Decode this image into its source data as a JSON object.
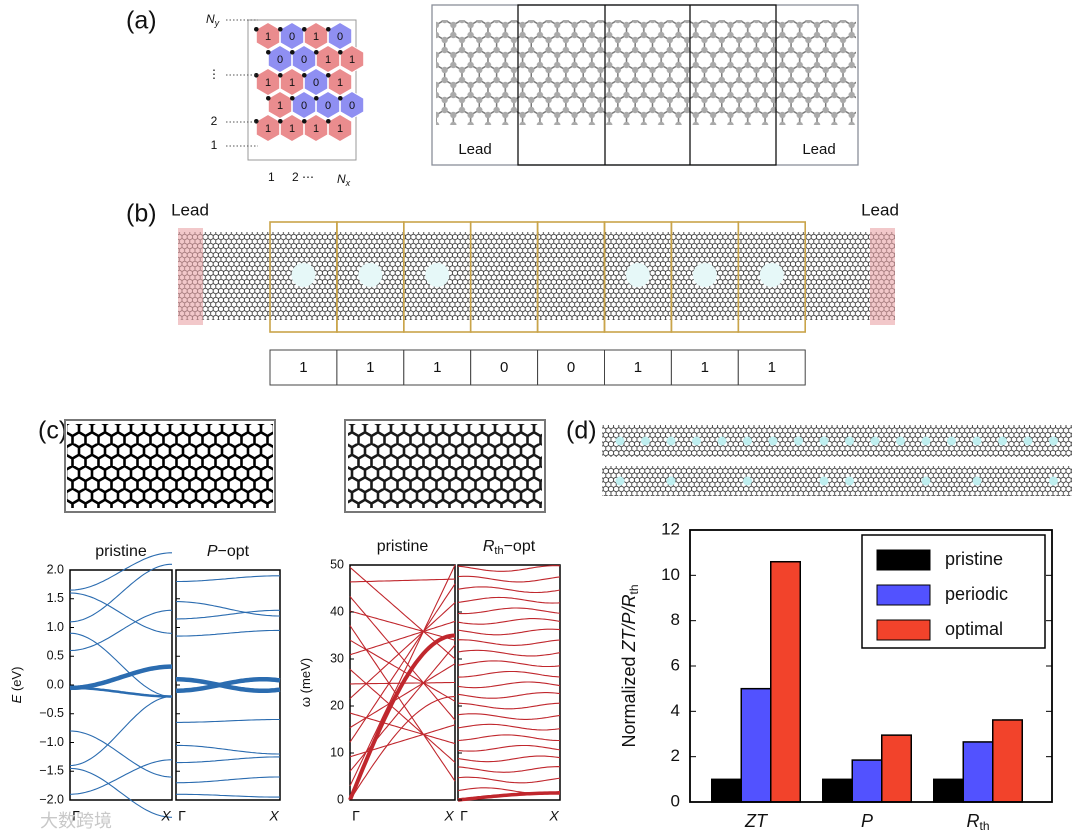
{
  "panel_a": {
    "label": "(a)",
    "ny_label": "N",
    "ny_sub": "y",
    "row_labels": [
      "⋮",
      "2",
      "1"
    ],
    "col_labels": [
      "1",
      "2 ⋯"
    ],
    "nx_label": "N",
    "nx_sub": "x",
    "cells": [
      [
        1,
        0,
        1,
        0
      ],
      [
        0,
        0,
        1,
        1
      ],
      [
        1,
        1,
        0,
        1
      ],
      [
        1,
        0,
        0,
        0
      ],
      [
        1,
        1,
        1,
        1
      ]
    ],
    "leads": [
      "Lead",
      "Lead"
    ]
  },
  "panel_b": {
    "label": "(b)",
    "leads": [
      "Lead",
      "Lead"
    ],
    "sequence": [
      1,
      1,
      1,
      0,
      0,
      1,
      1,
      1
    ]
  },
  "panel_c": {
    "label": "(c)",
    "electron": {
      "left_title": "pristine",
      "right_title_var": "P",
      "right_title_rest": "−opt",
      "ylabel_var": "E",
      "ylabel_rest": " (eV)",
      "ylim": [
        -2,
        2
      ],
      "yticks": [
        {
          "value": 2,
          "label": "2.0"
        },
        {
          "value": 1.5,
          "label": "1.5"
        },
        {
          "value": 1,
          "label": "1.0"
        },
        {
          "value": 0.5,
          "label": "0.5"
        },
        {
          "value": 0,
          "label": "0.0"
        },
        {
          "value": -0.5,
          "label": "−0.5"
        },
        {
          "value": -1,
          "label": "−1.0"
        },
        {
          "value": -1.5,
          "label": "−1.5"
        },
        {
          "value": -2,
          "label": "−2.0"
        }
      ],
      "xlabels": [
        "Γ",
        "X",
        "Γ",
        "X"
      ]
    },
    "phonon": {
      "left_title": "pristine",
      "right_title_var": "R",
      "right_title_sub": "th",
      "right_title_rest": "−opt",
      "ylabel": "ω (meV)",
      "ylim": [
        0,
        50
      ],
      "yticks": [
        0,
        10,
        20,
        30,
        40,
        50
      ],
      "xlabels": [
        "Γ",
        "X",
        "Γ",
        "X"
      ]
    }
  },
  "panel_d": {
    "label": "(d)"
  },
  "watermark": "大数跨境",
  "chart_data": {
    "type": "bar",
    "ylabel": "Normalized",
    "ylabel_vars": "ZT/P/R",
    "ylabel_sub": "th",
    "categories": [
      "ZT",
      "P",
      "R"
    ],
    "category_subscripts": [
      null,
      null,
      "th"
    ],
    "series": [
      {
        "name": "pristine",
        "color": "#000000",
        "values": [
          1,
          1,
          1
        ]
      },
      {
        "name": "periodic",
        "color": "#5252ff",
        "values": [
          5,
          1.85,
          2.65
        ]
      },
      {
        "name": "optimal",
        "color": "#f2432b",
        "values": [
          10.6,
          2.95,
          3.62
        ]
      }
    ],
    "ylim": [
      0,
      12
    ],
    "yticks": [
      0,
      2,
      4,
      6,
      8,
      10,
      12
    ],
    "legend": "upper right"
  }
}
